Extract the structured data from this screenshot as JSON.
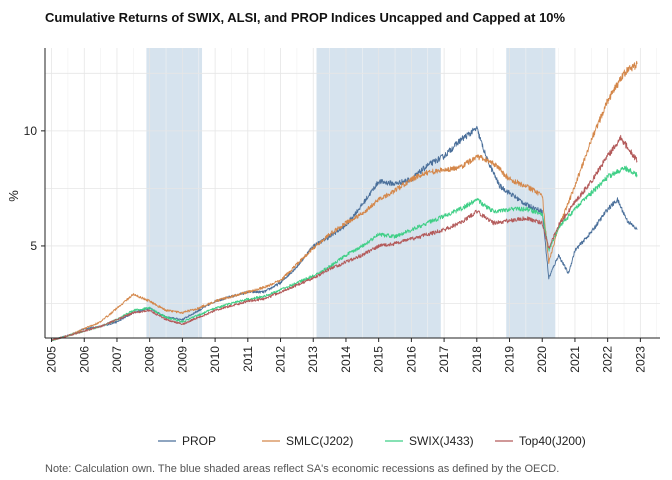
{
  "chart_data": {
    "type": "line",
    "title": "Cumulative Returns of SWIX, ALSI, and PROP Indices Uncapped and Capped at 10%",
    "xlabel": "",
    "ylabel": "%",
    "xlim": [
      2004.8,
      2023.6
    ],
    "ylim": [
      1.0,
      13.6
    ],
    "x_ticks": [
      "2005",
      "2006",
      "2007",
      "2008",
      "2009",
      "2010",
      "2011",
      "2012",
      "2013",
      "2014",
      "2015",
      "2016",
      "2017",
      "2018",
      "2019",
      "2020",
      "2021",
      "2022",
      "2023"
    ],
    "y_ticks": [
      5,
      10
    ],
    "grid": true,
    "legend_position": "bottom",
    "shaded_periods": [
      {
        "start": 2007.9,
        "end": 2009.6
      },
      {
        "start": 2013.1,
        "end": 2016.9
      },
      {
        "start": 2018.9,
        "end": 2020.4
      }
    ],
    "shade_color": "#d6e3ee",
    "series": [
      {
        "name": "PROP",
        "color": "#4a6f9a",
        "points": [
          [
            2005.0,
            0.9
          ],
          [
            2005.5,
            1.1
          ],
          [
            2006.0,
            1.4
          ],
          [
            2006.5,
            1.5
          ],
          [
            2007.0,
            1.7
          ],
          [
            2007.5,
            2.1
          ],
          [
            2008.0,
            2.3
          ],
          [
            2008.5,
            1.9
          ],
          [
            2009.0,
            1.8
          ],
          [
            2009.5,
            2.2
          ],
          [
            2010.0,
            2.6
          ],
          [
            2010.5,
            2.8
          ],
          [
            2011.0,
            3.0
          ],
          [
            2011.5,
            3.0
          ],
          [
            2012.0,
            3.4
          ],
          [
            2012.5,
            4.1
          ],
          [
            2013.0,
            5.0
          ],
          [
            2013.5,
            5.4
          ],
          [
            2014.0,
            5.9
          ],
          [
            2014.5,
            6.8
          ],
          [
            2015.0,
            7.8
          ],
          [
            2015.5,
            7.7
          ],
          [
            2016.0,
            7.9
          ],
          [
            2016.5,
            8.5
          ],
          [
            2017.0,
            8.9
          ],
          [
            2017.5,
            9.6
          ],
          [
            2018.0,
            10.1
          ],
          [
            2018.3,
            8.8
          ],
          [
            2018.7,
            7.6
          ],
          [
            2019.0,
            7.3
          ],
          [
            2019.5,
            6.8
          ],
          [
            2020.0,
            6.5
          ],
          [
            2020.2,
            3.6
          ],
          [
            2020.5,
            4.6
          ],
          [
            2020.8,
            3.8
          ],
          [
            2021.0,
            4.8
          ],
          [
            2021.5,
            5.6
          ],
          [
            2022.0,
            6.6
          ],
          [
            2022.3,
            7.0
          ],
          [
            2022.6,
            6.1
          ],
          [
            2022.9,
            5.7
          ]
        ]
      },
      {
        "name": "SMLC(J202)",
        "color": "#d4874a",
        "points": [
          [
            2005.0,
            0.9
          ],
          [
            2005.5,
            1.1
          ],
          [
            2006.0,
            1.4
          ],
          [
            2006.5,
            1.7
          ],
          [
            2007.0,
            2.3
          ],
          [
            2007.5,
            2.9
          ],
          [
            2008.0,
            2.6
          ],
          [
            2008.5,
            2.2
          ],
          [
            2009.0,
            2.1
          ],
          [
            2009.5,
            2.3
          ],
          [
            2010.0,
            2.6
          ],
          [
            2010.5,
            2.8
          ],
          [
            2011.0,
            3.0
          ],
          [
            2011.5,
            3.2
          ],
          [
            2012.0,
            3.5
          ],
          [
            2012.5,
            4.2
          ],
          [
            2013.0,
            4.9
          ],
          [
            2013.5,
            5.5
          ],
          [
            2014.0,
            6.0
          ],
          [
            2014.5,
            6.4
          ],
          [
            2015.0,
            7.0
          ],
          [
            2015.5,
            7.4
          ],
          [
            2016.0,
            7.9
          ],
          [
            2016.5,
            8.2
          ],
          [
            2017.0,
            8.3
          ],
          [
            2017.5,
            8.4
          ],
          [
            2018.0,
            8.9
          ],
          [
            2018.5,
            8.6
          ],
          [
            2019.0,
            7.9
          ],
          [
            2019.5,
            7.6
          ],
          [
            2020.0,
            7.2
          ],
          [
            2020.2,
            4.3
          ],
          [
            2020.5,
            5.8
          ],
          [
            2021.0,
            7.6
          ],
          [
            2021.5,
            9.6
          ],
          [
            2022.0,
            11.3
          ],
          [
            2022.5,
            12.5
          ],
          [
            2022.9,
            12.9
          ]
        ]
      },
      {
        "name": "SWIX(J433)",
        "color": "#3fcf86",
        "points": [
          [
            2005.0,
            0.9
          ],
          [
            2005.5,
            1.1
          ],
          [
            2006.0,
            1.3
          ],
          [
            2006.5,
            1.5
          ],
          [
            2007.0,
            1.8
          ],
          [
            2007.5,
            2.2
          ],
          [
            2008.0,
            2.3
          ],
          [
            2008.5,
            1.9
          ],
          [
            2009.0,
            1.7
          ],
          [
            2009.5,
            2.0
          ],
          [
            2010.0,
            2.3
          ],
          [
            2010.5,
            2.5
          ],
          [
            2011.0,
            2.7
          ],
          [
            2011.5,
            2.8
          ],
          [
            2012.0,
            3.1
          ],
          [
            2012.5,
            3.4
          ],
          [
            2013.0,
            3.7
          ],
          [
            2013.5,
            4.1
          ],
          [
            2014.0,
            4.6
          ],
          [
            2014.5,
            5.0
          ],
          [
            2015.0,
            5.5
          ],
          [
            2015.5,
            5.4
          ],
          [
            2016.0,
            5.7
          ],
          [
            2016.5,
            6.0
          ],
          [
            2017.0,
            6.3
          ],
          [
            2017.5,
            6.6
          ],
          [
            2018.0,
            7.0
          ],
          [
            2018.5,
            6.5
          ],
          [
            2019.0,
            6.6
          ],
          [
            2019.5,
            6.6
          ],
          [
            2020.0,
            6.4
          ],
          [
            2020.2,
            4.8
          ],
          [
            2020.5,
            5.8
          ],
          [
            2021.0,
            6.6
          ],
          [
            2021.5,
            7.3
          ],
          [
            2022.0,
            8.0
          ],
          [
            2022.5,
            8.4
          ],
          [
            2022.9,
            8.1
          ]
        ]
      },
      {
        "name": "Top40(J200)",
        "color": "#b35a5a",
        "points": [
          [
            2005.0,
            0.9
          ],
          [
            2005.5,
            1.1
          ],
          [
            2006.0,
            1.3
          ],
          [
            2006.5,
            1.5
          ],
          [
            2007.0,
            1.8
          ],
          [
            2007.5,
            2.1
          ],
          [
            2008.0,
            2.2
          ],
          [
            2008.5,
            1.8
          ],
          [
            2009.0,
            1.6
          ],
          [
            2009.5,
            1.9
          ],
          [
            2010.0,
            2.2
          ],
          [
            2010.5,
            2.4
          ],
          [
            2011.0,
            2.6
          ],
          [
            2011.5,
            2.7
          ],
          [
            2012.0,
            3.0
          ],
          [
            2012.5,
            3.3
          ],
          [
            2013.0,
            3.6
          ],
          [
            2013.5,
            4.0
          ],
          [
            2014.0,
            4.3
          ],
          [
            2014.5,
            4.6
          ],
          [
            2015.0,
            5.0
          ],
          [
            2015.5,
            5.1
          ],
          [
            2016.0,
            5.3
          ],
          [
            2016.5,
            5.5
          ],
          [
            2017.0,
            5.7
          ],
          [
            2017.5,
            6.0
          ],
          [
            2018.0,
            6.5
          ],
          [
            2018.5,
            6.0
          ],
          [
            2019.0,
            6.1
          ],
          [
            2019.5,
            6.2
          ],
          [
            2020.0,
            6.0
          ],
          [
            2020.2,
            4.9
          ],
          [
            2020.5,
            5.9
          ],
          [
            2021.0,
            6.9
          ],
          [
            2021.5,
            7.8
          ],
          [
            2022.0,
            8.9
          ],
          [
            2022.4,
            9.7
          ],
          [
            2022.9,
            8.7
          ]
        ]
      }
    ],
    "note": "Note: Calculation own. The blue shaded areas reflect SA's economic recessions as defined by the OECD."
  }
}
